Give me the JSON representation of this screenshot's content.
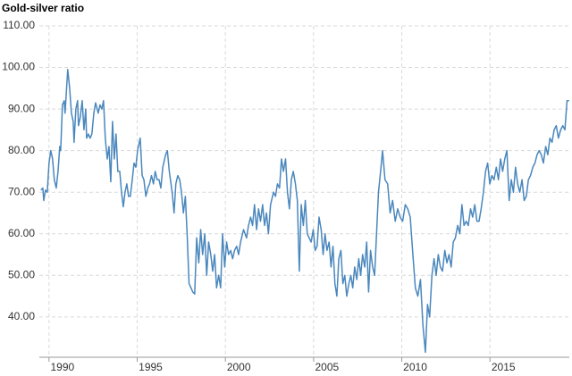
{
  "chart_data": {
    "type": "line",
    "title": "Gold-silver ratio",
    "color": "#4a87bd",
    "grid": true,
    "xlim": [
      1989.45,
      2019.5
    ],
    "xticks": [
      1990,
      1995,
      2000,
      2005,
      2010,
      2015
    ],
    "ylim": [
      30.3,
      110
    ],
    "yticks": [
      {
        "value": 40,
        "label": "40.00"
      },
      {
        "value": 50,
        "label": "50.00"
      },
      {
        "value": 60,
        "label": "60.00"
      },
      {
        "value": 70,
        "label": "70.00"
      },
      {
        "value": 80,
        "label": "80.00"
      },
      {
        "value": 90,
        "label": "90.00"
      },
      {
        "value": 100,
        "label": "100.00"
      },
      {
        "value": 110,
        "label": "110.00"
      }
    ],
    "x": [
      1989.54,
      1989.65,
      1989.7,
      1989.8,
      1989.9,
      1990.0,
      1990.1,
      1990.2,
      1990.3,
      1990.41,
      1990.51,
      1990.61,
      1990.66,
      1990.76,
      1990.86,
      1990.91,
      1991.06,
      1991.17,
      1991.27,
      1991.37,
      1991.42,
      1991.52,
      1991.62,
      1991.67,
      1991.77,
      1991.88,
      1991.98,
      1992.08,
      1992.13,
      1992.23,
      1992.33,
      1992.43,
      1992.54,
      1992.64,
      1992.79,
      1992.89,
      1992.99,
      1993.09,
      1993.19,
      1993.3,
      1993.4,
      1993.5,
      1993.6,
      1993.7,
      1993.8,
      1993.9,
      1994.01,
      1994.11,
      1994.21,
      1994.31,
      1994.41,
      1994.51,
      1994.61,
      1994.72,
      1994.82,
      1994.92,
      1995.02,
      1995.17,
      1995.28,
      1995.38,
      1995.49,
      1995.6,
      1995.7,
      1995.81,
      1995.92,
      1996.02,
      1996.13,
      1996.24,
      1996.34,
      1996.45,
      1996.61,
      1996.71,
      1996.82,
      1996.98,
      1997.09,
      1997.19,
      1997.3,
      1997.41,
      1997.51,
      1997.62,
      1997.73,
      1997.83,
      1997.94,
      1998.05,
      1998.15,
      1998.26,
      1998.37,
      1998.49,
      1998.6,
      1998.71,
      1998.83,
      1998.94,
      1999.05,
      1999.17,
      1999.28,
      1999.39,
      1999.5,
      1999.62,
      1999.73,
      1999.84,
      1999.96,
      2000.07,
      2000.18,
      2000.3,
      2000.41,
      2000.52,
      2000.64,
      2000.75,
      2000.86,
      2001.03,
      2001.2,
      2001.31,
      2001.43,
      2001.54,
      2001.65,
      2001.77,
      2001.88,
      2001.99,
      2002.11,
      2002.22,
      2002.33,
      2002.44,
      2002.56,
      2002.73,
      2002.84,
      2002.95,
      2003.07,
      2003.18,
      2003.29,
      2003.41,
      2003.52,
      2003.63,
      2003.74,
      2003.85,
      2003.97,
      2004.08,
      2004.19,
      2004.3,
      2004.42,
      2004.53,
      2004.64,
      2004.75,
      2004.86,
      2004.98,
      2005.09,
      2005.2,
      2005.31,
      2005.43,
      2005.54,
      2005.65,
      2005.76,
      2005.88,
      2005.99,
      2006.1,
      2006.21,
      2006.32,
      2006.43,
      2006.55,
      2006.66,
      2006.77,
      2006.88,
      2007.0,
      2007.11,
      2007.22,
      2007.33,
      2007.45,
      2007.56,
      2007.67,
      2007.78,
      2007.9,
      2008.01,
      2008.12,
      2008.23,
      2008.35,
      2008.46,
      2008.57,
      2008.68,
      2008.8,
      2008.91,
      2009.05,
      2009.2,
      2009.34,
      2009.48,
      2009.63,
      2009.77,
      2009.91,
      2010.05,
      2010.2,
      2010.34,
      2010.48,
      2010.63,
      2010.77,
      2010.91,
      2011.06,
      2011.2,
      2011.34,
      2011.46,
      2011.58,
      2011.71,
      2011.83,
      2011.95,
      2012.07,
      2012.19,
      2012.31,
      2012.44,
      2012.56,
      2012.68,
      2012.8,
      2012.92,
      2013.04,
      2013.17,
      2013.29,
      2013.41,
      2013.53,
      2013.65,
      2013.77,
      2013.9,
      2014.02,
      2014.14,
      2014.26,
      2014.38,
      2014.5,
      2014.63,
      2014.75,
      2014.87,
      2014.99,
      2015.11,
      2015.23,
      2015.36,
      2015.48,
      2015.6,
      2015.72,
      2015.84,
      2015.96,
      2016.09,
      2016.21,
      2016.33,
      2016.45,
      2016.57,
      2016.69,
      2016.82,
      2016.94,
      2017.06,
      2017.18,
      2017.3,
      2017.43,
      2017.55,
      2017.67,
      2017.79,
      2017.91,
      2018.03,
      2018.16,
      2018.28,
      2018.4,
      2018.52,
      2018.64,
      2018.76,
      2018.88,
      2019.01,
      2019.13,
      2019.25,
      2019.37,
      2019.49
    ],
    "values": [
      70.5,
      71,
      68,
      70.5,
      70,
      77,
      80,
      78,
      73,
      71,
      75,
      81,
      80,
      91,
      92,
      89,
      99.5,
      95,
      89,
      87,
      82,
      90,
      92,
      86,
      88,
      92,
      85,
      90,
      83,
      84,
      83,
      84,
      89,
      91.5,
      89,
      91,
      90,
      92,
      83,
      78,
      81,
      72.5,
      87,
      78,
      84,
      75,
      75,
      70,
      66.5,
      70,
      72,
      69,
      69,
      73,
      77,
      76,
      80,
      83,
      74,
      73,
      69,
      71,
      72,
      74,
      72,
      75,
      73,
      73,
      71,
      76,
      79,
      80,
      75,
      70,
      65,
      72,
      74,
      73,
      70,
      65,
      69,
      60,
      48,
      47,
      46,
      45.5,
      59,
      53,
      61,
      55,
      60,
      50,
      58,
      55,
      51,
      55,
      47,
      50,
      47,
      60,
      52,
      58,
      55,
      56,
      54,
      56,
      57,
      55,
      58,
      61,
      59,
      62,
      64,
      62,
      67,
      61,
      66,
      63,
      67,
      62,
      65,
      60,
      67,
      70,
      69,
      72,
      71,
      78,
      75,
      78,
      70,
      66,
      73,
      75,
      72,
      68,
      51,
      67,
      62,
      68,
      60,
      59,
      58,
      61,
      56,
      57,
      64,
      61,
      55,
      60,
      56,
      58,
      52,
      57,
      48,
      45,
      54,
      56,
      48,
      50,
      45,
      48,
      50,
      47,
      52,
      49,
      54,
      50,
      55,
      52,
      58,
      46,
      56,
      52,
      50,
      60,
      70,
      75,
      80,
      73,
      72,
      65,
      68,
      63,
      66,
      64,
      63,
      67,
      66,
      64,
      55,
      47,
      45,
      49,
      38,
      31.5,
      43,
      40,
      50,
      54,
      50,
      55,
      52,
      51,
      56,
      53,
      55,
      52,
      58,
      59,
      62,
      60,
      67,
      62,
      63,
      62,
      66,
      64,
      67,
      63,
      63,
      66,
      70,
      75,
      77,
      72,
      74,
      73,
      76,
      73,
      78,
      75,
      78,
      80,
      68,
      73,
      70,
      76,
      72,
      70,
      73,
      68,
      69,
      73,
      74,
      76,
      77,
      79,
      80,
      79,
      77,
      81,
      79,
      83,
      82,
      85,
      86,
      83,
      85,
      86,
      85,
      92,
      92
    ]
  }
}
